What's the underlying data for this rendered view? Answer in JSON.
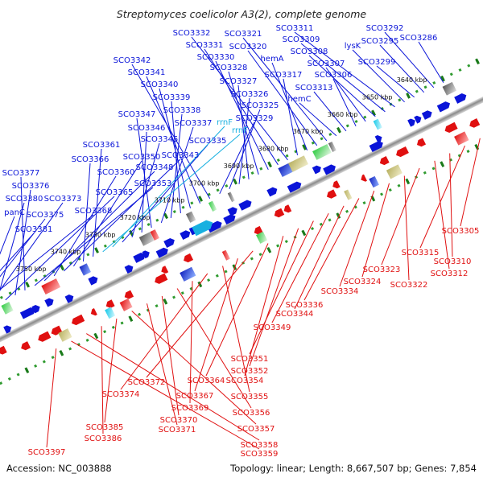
{
  "title": "Streptomyces coelicolor A3(2), complete genome",
  "footer": {
    "accession": "Accession: NC_003888",
    "stats": "Topology: linear; Length: 8,667,507 bp; Genes: 7,854"
  },
  "colors": {
    "forward": "#0a14d8",
    "reverse": "#e01010",
    "rrna": "#18b0e0",
    "tick_major": "#1a7a1a",
    "tick_minor": "#2e9a2e",
    "backbone": "#a8a8a8"
  },
  "ticks": [
    "3640 kbp",
    "3650 kbp",
    "3660 kbp",
    "3670 kbp",
    "3680 kbp",
    "3690 kbp",
    "3700 kbp",
    "3710 kbp",
    "3720 kbp",
    "3730 kbp",
    "3740 kbp",
    "3750 kbp"
  ],
  "top_labels": [
    {
      "text": "SCO3286",
      "color": "forward"
    },
    {
      "text": "SCO3292",
      "color": "forward"
    },
    {
      "text": "SCO3295",
      "color": "forward"
    },
    {
      "text": "SCO3299",
      "color": "forward"
    },
    {
      "text": "lysK",
      "color": "forward"
    },
    {
      "text": "SCO3311",
      "color": "forward"
    },
    {
      "text": "SCO3309",
      "color": "forward"
    },
    {
      "text": "SCO3308",
      "color": "forward"
    },
    {
      "text": "SCO3307",
      "color": "forward"
    },
    {
      "text": "SCO3306",
      "color": "forward"
    },
    {
      "text": "SCO3313",
      "color": "forward"
    },
    {
      "text": "hemC",
      "color": "forward"
    },
    {
      "text": "SCO3321",
      "color": "forward"
    },
    {
      "text": "SCO3320",
      "color": "forward"
    },
    {
      "text": "hemA",
      "color": "forward"
    },
    {
      "text": "SCO3317",
      "color": "forward"
    },
    {
      "text": "SCO3332",
      "color": "forward"
    },
    {
      "text": "SCO3331",
      "color": "forward"
    },
    {
      "text": "SCO3330",
      "color": "forward"
    },
    {
      "text": "SCO3328",
      "color": "forward"
    },
    {
      "text": "SCO3327",
      "color": "forward"
    },
    {
      "text": "SCO3326",
      "color": "forward"
    },
    {
      "text": "SCO3325",
      "color": "forward"
    },
    {
      "text": "SCO3329",
      "color": "forward"
    },
    {
      "text": "SCO3342",
      "color": "forward"
    },
    {
      "text": "SCO3341",
      "color": "forward"
    },
    {
      "text": "SCO3340",
      "color": "forward"
    },
    {
      "text": "SCO3339",
      "color": "forward"
    },
    {
      "text": "SCO3338",
      "color": "forward"
    },
    {
      "text": "SCO3337",
      "color": "forward"
    },
    {
      "text": "SCO3347",
      "color": "forward"
    },
    {
      "text": "SCO3346",
      "color": "forward"
    },
    {
      "text": "SCO3345",
      "color": "forward"
    },
    {
      "text": "SCO3335",
      "color": "forward"
    },
    {
      "text": "rrnF",
      "color": "rrna"
    },
    {
      "text": "rrnF",
      "color": "rrna"
    },
    {
      "text": "SCO3361",
      "color": "forward"
    },
    {
      "text": "SCO3366",
      "color": "forward"
    },
    {
      "text": "SCO3350",
      "color": "forward"
    },
    {
      "text": "SCO3343",
      "color": "forward"
    },
    {
      "text": "SCO3360",
      "color": "forward"
    },
    {
      "text": "SCO3348",
      "color": "forward"
    },
    {
      "text": "SCO3353",
      "color": "forward"
    },
    {
      "text": "SCO3377",
      "color": "forward"
    },
    {
      "text": "SCO3376",
      "color": "forward"
    },
    {
      "text": "SCO3365",
      "color": "forward"
    },
    {
      "text": "SCO3380",
      "color": "forward"
    },
    {
      "text": "SCO3373",
      "color": "forward"
    },
    {
      "text": "panC",
      "color": "forward"
    },
    {
      "text": "SCO3375",
      "color": "forward"
    },
    {
      "text": "SCO3368",
      "color": "forward"
    },
    {
      "text": "SCO3381",
      "color": "forward"
    }
  ],
  "bottom_labels": [
    {
      "text": "SCO3305",
      "color": "reverse"
    },
    {
      "text": "SCO3315",
      "color": "reverse"
    },
    {
      "text": "SCO3310",
      "color": "reverse"
    },
    {
      "text": "SCO3312",
      "color": "reverse"
    },
    {
      "text": "SCO3323",
      "color": "reverse"
    },
    {
      "text": "SCO3322",
      "color": "reverse"
    },
    {
      "text": "SCO3324",
      "color": "reverse"
    },
    {
      "text": "SCO3334",
      "color": "reverse"
    },
    {
      "text": "SCO3336",
      "color": "reverse"
    },
    {
      "text": "SCO3344",
      "color": "reverse"
    },
    {
      "text": "SCO3349",
      "color": "reverse"
    },
    {
      "text": "SCO3351",
      "color": "reverse"
    },
    {
      "text": "SCO3352",
      "color": "reverse"
    },
    {
      "text": "SCO3354",
      "color": "reverse"
    },
    {
      "text": "SCO3364",
      "color": "reverse"
    },
    {
      "text": "SCO3372",
      "color": "reverse"
    },
    {
      "text": "SCO3367",
      "color": "reverse"
    },
    {
      "text": "SCO3355",
      "color": "reverse"
    },
    {
      "text": "SCO3374",
      "color": "reverse"
    },
    {
      "text": "SCO3369",
      "color": "reverse"
    },
    {
      "text": "SCO3356",
      "color": "reverse"
    },
    {
      "text": "SCO3370",
      "color": "reverse"
    },
    {
      "text": "SCO3371",
      "color": "reverse"
    },
    {
      "text": "SCO3357",
      "color": "reverse"
    },
    {
      "text": "SCO3385",
      "color": "reverse"
    },
    {
      "text": "SCO3386",
      "color": "reverse"
    },
    {
      "text": "SCO3358",
      "color": "reverse"
    },
    {
      "text": "SCO3359",
      "color": "reverse"
    },
    {
      "text": "SCO3397",
      "color": "reverse"
    }
  ]
}
